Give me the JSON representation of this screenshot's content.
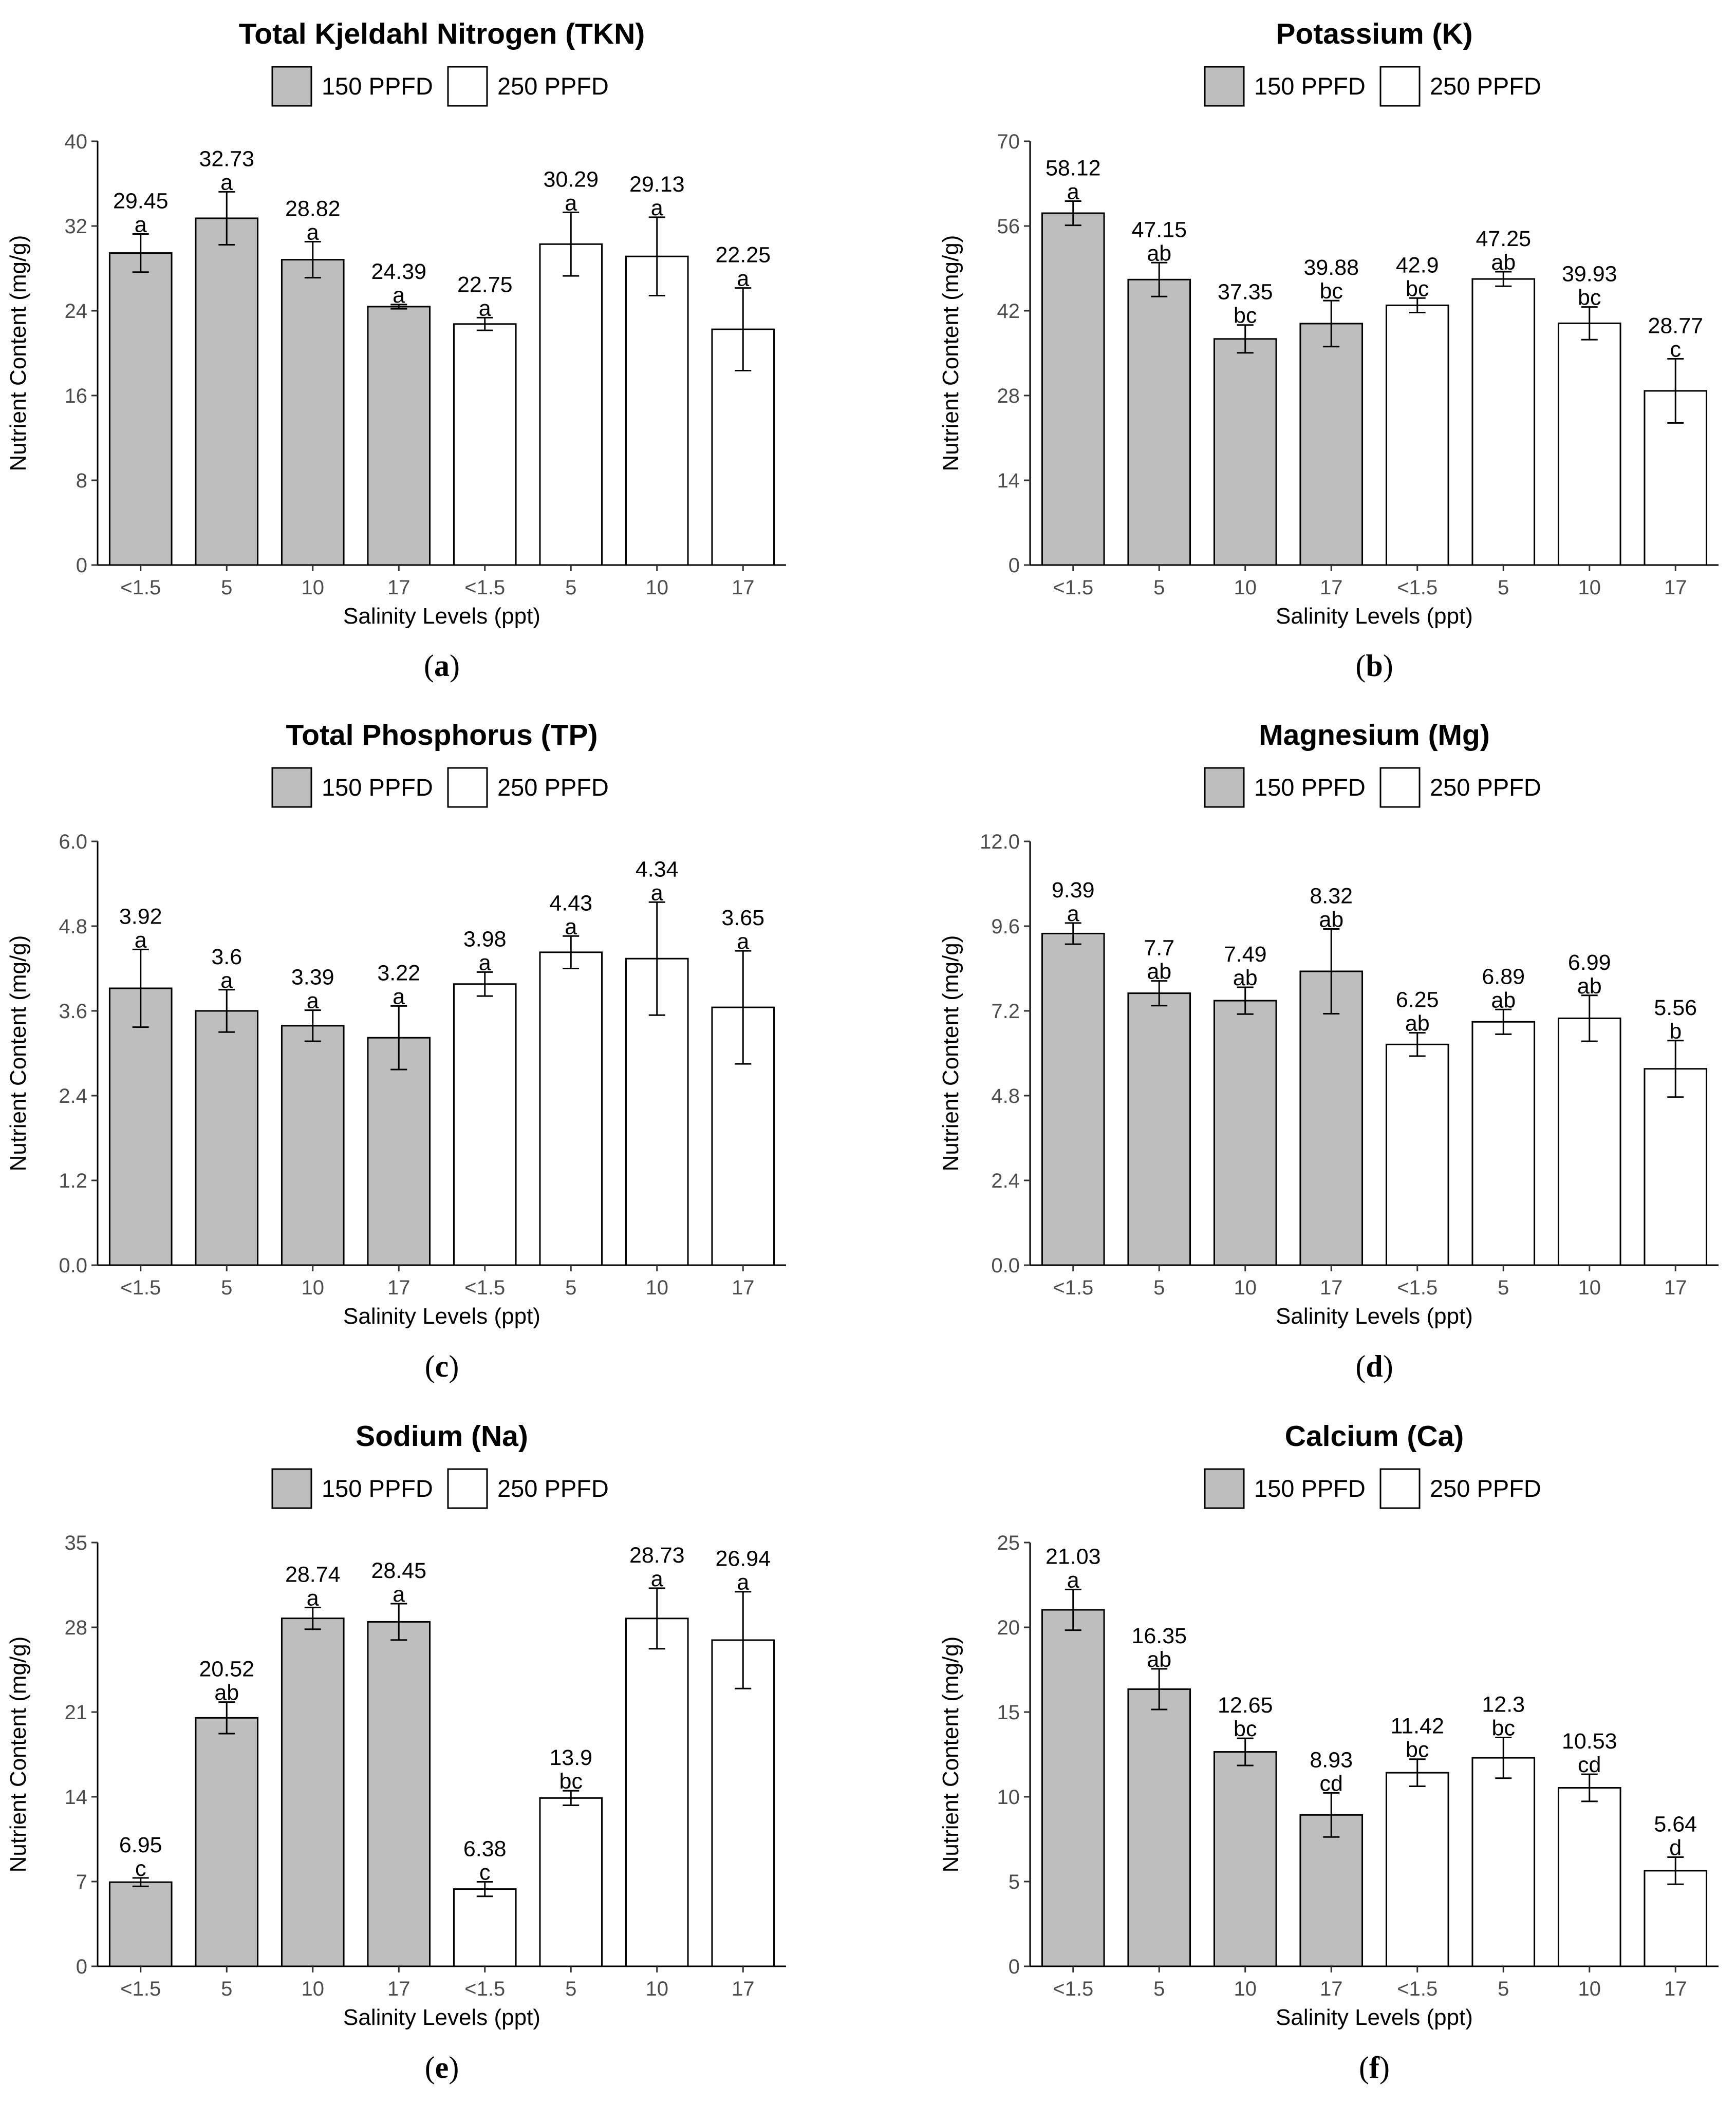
{
  "legend": {
    "group1": "150 PPFD",
    "group2": "250 PPFD"
  },
  "colors": {
    "group1_fill": "#bebebe",
    "group2_fill": "#ffffff",
    "stroke": "#000000"
  },
  "chart_data": [
    {
      "type": "bar",
      "panel": "(a)",
      "panel_letter": "a",
      "title": "Total Kjeldahl Nitrogen (TKN)",
      "xlabel": "Salinity Levels (ppt)",
      "ylabel": "Nutrient Content (mg/g)",
      "categories": [
        "<1.5",
        "5",
        "10",
        "17",
        "<1.5",
        "5",
        "10",
        "17"
      ],
      "groups": [
        "150 PPFD",
        "150 PPFD",
        "150 PPFD",
        "150 PPFD",
        "250 PPFD",
        "250 PPFD",
        "250 PPFD",
        "250 PPFD"
      ],
      "values": [
        29.45,
        32.73,
        28.82,
        24.39,
        22.75,
        30.29,
        29.13,
        22.25
      ],
      "value_labels": [
        "29.45",
        "32.73",
        "28.82",
        "24.39",
        "22.75",
        "30.29",
        "29.13",
        "22.25"
      ],
      "errors": [
        1.8,
        2.5,
        1.7,
        0.2,
        0.6,
        3.0,
        3.7,
        3.9
      ],
      "letters": [
        "a",
        "a",
        "a",
        "a",
        "a",
        "a",
        "a",
        "a"
      ],
      "ylim": [
        0,
        40
      ],
      "yticks": [
        "0",
        "8",
        "16",
        "24",
        "32",
        "40"
      ]
    },
    {
      "type": "bar",
      "panel": "(b)",
      "panel_letter": "b",
      "title": "Potassium (K)",
      "xlabel": "Salinity Levels (ppt)",
      "ylabel": "Nutrient Content (mg/g)",
      "categories": [
        "<1.5",
        "5",
        "10",
        "17",
        "<1.5",
        "5",
        "10",
        "17"
      ],
      "groups": [
        "150 PPFD",
        "150 PPFD",
        "150 PPFD",
        "150 PPFD",
        "250 PPFD",
        "250 PPFD",
        "250 PPFD",
        "250 PPFD"
      ],
      "values": [
        58.12,
        47.15,
        37.35,
        39.88,
        42.9,
        47.25,
        39.93,
        28.77
      ],
      "value_labels": [
        "58.12",
        "47.15",
        "37.35",
        "39.88",
        "42.9",
        "47.25",
        "39.93",
        "28.77"
      ],
      "errors": [
        2.0,
        2.8,
        2.3,
        3.8,
        1.2,
        1.2,
        2.7,
        5.3
      ],
      "letters": [
        "a",
        "ab",
        "bc",
        "bc",
        "bc",
        "ab",
        "bc",
        "c"
      ],
      "ylim": [
        0,
        70
      ],
      "yticks": [
        "0",
        "14",
        "28",
        "42",
        "56",
        "70"
      ]
    },
    {
      "type": "bar",
      "panel": "(c)",
      "panel_letter": "c",
      "title": "Total Phosphorus (TP)",
      "xlabel": "Salinity Levels (ppt)",
      "ylabel": "Nutrient Content (mg/g)",
      "categories": [
        "<1.5",
        "5",
        "10",
        "17",
        "<1.5",
        "5",
        "10",
        "17"
      ],
      "groups": [
        "150 PPFD",
        "150 PPFD",
        "150 PPFD",
        "150 PPFD",
        "250 PPFD",
        "250 PPFD",
        "250 PPFD",
        "250 PPFD"
      ],
      "values": [
        3.92,
        3.6,
        3.39,
        3.22,
        3.98,
        4.43,
        4.34,
        3.65
      ],
      "value_labels": [
        "3.92",
        "3.6",
        "3.39",
        "3.22",
        "3.98",
        "4.43",
        "4.34",
        "3.65"
      ],
      "errors": [
        0.55,
        0.3,
        0.22,
        0.45,
        0.17,
        0.23,
        0.8,
        0.8
      ],
      "letters": [
        "a",
        "a",
        "a",
        "a",
        "a",
        "a",
        "a",
        "a"
      ],
      "ylim": [
        0,
        6
      ],
      "yticks": [
        "0.0",
        "1.2",
        "2.4",
        "3.6",
        "4.8",
        "6.0"
      ]
    },
    {
      "type": "bar",
      "panel": "(d)",
      "panel_letter": "d",
      "title": "Magnesium (Mg)",
      "xlabel": "Salinity Levels (ppt)",
      "ylabel": "Nutrient Content (mg/g)",
      "categories": [
        "<1.5",
        "5",
        "10",
        "17",
        "<1.5",
        "5",
        "10",
        "17"
      ],
      "groups": [
        "150 PPFD",
        "150 PPFD",
        "150 PPFD",
        "150 PPFD",
        "250 PPFD",
        "250 PPFD",
        "250 PPFD",
        "250 PPFD"
      ],
      "values": [
        9.39,
        7.7,
        7.49,
        8.32,
        6.25,
        6.89,
        6.99,
        5.56
      ],
      "value_labels": [
        "9.39",
        "7.7",
        "7.49",
        "8.32",
        "6.25",
        "6.89",
        "6.99",
        "5.56"
      ],
      "errors": [
        0.3,
        0.35,
        0.38,
        1.2,
        0.33,
        0.35,
        0.65,
        0.8
      ],
      "letters": [
        "a",
        "ab",
        "ab",
        "ab",
        "ab",
        "ab",
        "ab",
        "b"
      ],
      "ylim": [
        0,
        12
      ],
      "yticks": [
        "0.0",
        "2.4",
        "4.8",
        "7.2",
        "9.6",
        "12.0"
      ]
    },
    {
      "type": "bar",
      "panel": "(e)",
      "panel_letter": "e",
      "title": "Sodium (Na)",
      "xlabel": "Salinity Levels (ppt)",
      "ylabel": "Nutrient Content (mg/g)",
      "categories": [
        "<1.5",
        "5",
        "10",
        "17",
        "<1.5",
        "5",
        "10",
        "17"
      ],
      "groups": [
        "150 PPFD",
        "150 PPFD",
        "150 PPFD",
        "150 PPFD",
        "250 PPFD",
        "250 PPFD",
        "250 PPFD",
        "250 PPFD"
      ],
      "values": [
        6.95,
        20.52,
        28.74,
        28.45,
        6.38,
        13.9,
        28.73,
        26.94
      ],
      "value_labels": [
        "6.95",
        "20.52",
        "28.74",
        "28.45",
        "6.38",
        "13.9",
        "28.73",
        "26.94"
      ],
      "errors": [
        0.35,
        1.3,
        0.9,
        1.5,
        0.6,
        0.6,
        2.5,
        4.0
      ],
      "letters": [
        "c",
        "ab",
        "a",
        "a",
        "c",
        "bc",
        "a",
        "a"
      ],
      "ylim": [
        0,
        35
      ],
      "yticks": [
        "0",
        "7",
        "14",
        "21",
        "28",
        "35"
      ]
    },
    {
      "type": "bar",
      "panel": "(f)",
      "panel_letter": "f",
      "title": "Calcium (Ca)",
      "xlabel": "Salinity Levels (ppt)",
      "ylabel": "Nutrient Content (mg/g)",
      "categories": [
        "<1.5",
        "5",
        "10",
        "17",
        "<1.5",
        "5",
        "10",
        "17"
      ],
      "groups": [
        "150 PPFD",
        "150 PPFD",
        "150 PPFD",
        "150 PPFD",
        "250 PPFD",
        "250 PPFD",
        "250 PPFD",
        "250 PPFD"
      ],
      "values": [
        21.03,
        16.35,
        12.65,
        8.93,
        11.42,
        12.3,
        10.53,
        5.64
      ],
      "value_labels": [
        "21.03",
        "16.35",
        "12.65",
        "8.93",
        "11.42",
        "12.3",
        "10.53",
        "5.64"
      ],
      "errors": [
        1.2,
        1.2,
        0.8,
        1.3,
        0.8,
        1.2,
        0.8,
        0.8
      ],
      "letters": [
        "a",
        "ab",
        "bc",
        "cd",
        "bc",
        "bc",
        "cd",
        "d"
      ],
      "ylim": [
        0,
        25
      ],
      "yticks": [
        "0",
        "5",
        "10",
        "15",
        "20",
        "25"
      ]
    }
  ]
}
